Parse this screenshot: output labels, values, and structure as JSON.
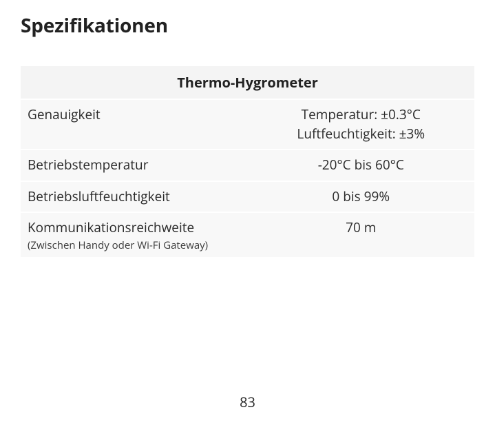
{
  "title": "Spezifikationen",
  "table": {
    "header": "Thermo-Hygrometer",
    "header_bg": "#f4f4f4",
    "row_bg": "#f8f8f8",
    "header_fontsize": 20,
    "cell_fontsize": 19,
    "subnote_fontsize": 15,
    "text_color": "#2a2a2a",
    "rows": [
      {
        "label": "Genauigkeit",
        "value_line1": "Temperatur: ±0.3°C",
        "value_line2": "Luftfeuchtigkeit: ±3%"
      },
      {
        "label": "Betriebstemperatur",
        "value": "-20°C bis 60°C"
      },
      {
        "label": "Betriebsluftfeuchtigkeit",
        "value": "0 bis 99%"
      },
      {
        "label": "Kommunikationsreichweite",
        "label_sub": "(Zwischen Handy oder Wi-Fi Gateway)",
        "value": "70 m"
      }
    ]
  },
  "page_number": "83",
  "background_color": "#ffffff"
}
